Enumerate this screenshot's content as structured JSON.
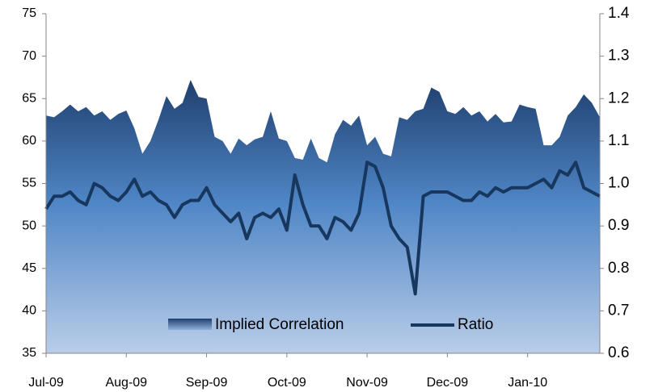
{
  "chart_data": {
    "type": "area_line",
    "categories": [
      "Jul-09",
      null,
      null,
      null,
      null,
      null,
      null,
      null,
      null,
      null,
      "Aug-09",
      null,
      null,
      null,
      null,
      null,
      null,
      null,
      null,
      null,
      "Sep-09",
      null,
      null,
      null,
      null,
      null,
      null,
      null,
      null,
      null,
      "Oct-09",
      null,
      null,
      null,
      null,
      null,
      null,
      null,
      null,
      null,
      "Nov-09",
      null,
      null,
      null,
      null,
      null,
      null,
      null,
      null,
      null,
      "Dec-09",
      null,
      null,
      null,
      null,
      null,
      null,
      null,
      null,
      null,
      "Jan-10",
      null,
      null,
      null,
      null,
      null,
      null,
      null,
      null,
      null
    ],
    "series": [
      {
        "name": "Implied Correlation",
        "type": "area",
        "color": "#1f3f6e",
        "values": [
          63,
          62.8,
          63.5,
          64.3,
          63.5,
          64,
          63,
          63.5,
          62.5,
          63.2,
          63.6,
          61.5,
          58.5,
          60,
          62.5,
          65.3,
          63.8,
          64.5,
          67.2,
          65.2,
          65,
          60.5,
          60,
          58.5,
          60.3,
          59.5,
          60.2,
          60.5,
          63.5,
          60.3,
          60,
          58,
          57.8,
          60.3,
          58,
          57.5,
          60.8,
          62.5,
          61.8,
          63,
          59.5,
          60.5,
          58.5,
          58.2,
          62.8,
          62.5,
          63.5,
          63.8,
          66.3,
          65.8,
          63.5,
          63.2,
          64,
          63,
          63.5,
          62.3,
          63.2,
          62.2,
          62.3,
          64.3,
          64,
          63.8,
          59.5,
          59.5,
          60.5,
          63,
          64,
          65.5,
          64.5,
          62.8
        ]
      },
      {
        "name": "Ratio",
        "type": "line",
        "axis": "y2",
        "color": "#17375e",
        "values": [
          0.94,
          0.97,
          0.97,
          0.98,
          0.96,
          0.95,
          1.0,
          0.99,
          0.97,
          0.96,
          0.98,
          1.01,
          0.97,
          0.98,
          0.96,
          0.95,
          0.92,
          0.95,
          0.96,
          0.96,
          0.99,
          0.95,
          0.93,
          0.91,
          0.93,
          0.87,
          0.92,
          0.93,
          0.92,
          0.94,
          0.89,
          1.02,
          0.95,
          0.9,
          0.9,
          0.87,
          0.92,
          0.91,
          0.89,
          0.93,
          1.05,
          1.04,
          0.99,
          0.9,
          0.87,
          0.85,
          0.74,
          0.97,
          0.98,
          0.98,
          0.98,
          0.97,
          0.96,
          0.96,
          0.98,
          0.97,
          0.99,
          0.98,
          0.99,
          0.99,
          0.99,
          1.0,
          1.01,
          0.99,
          1.03,
          1.02,
          1.05,
          0.99,
          0.98,
          0.97
        ]
      }
    ],
    "ylim": [
      35,
      75
    ],
    "yticks": [
      35,
      40,
      45,
      50,
      55,
      60,
      65,
      70,
      75
    ],
    "y2lim": [
      0.6,
      1.4
    ],
    "y2ticks": [
      {
        "value": 0.6,
        "label": "0.6"
      },
      {
        "value": 0.7,
        "label": "0.7"
      },
      {
        "value": 0.8,
        "label": "0.8"
      },
      {
        "value": 0.9,
        "label": "0.9"
      },
      {
        "value": 1.0,
        "label": "1.0"
      },
      {
        "value": 1.1,
        "label": "1.1"
      },
      {
        "value": 1.2,
        "label": "1.2"
      },
      {
        "value": 1.3,
        "label": "1.3"
      },
      {
        "value": 1.4,
        "label": "1.4"
      }
    ],
    "grid": true,
    "legend": "bottom"
  }
}
